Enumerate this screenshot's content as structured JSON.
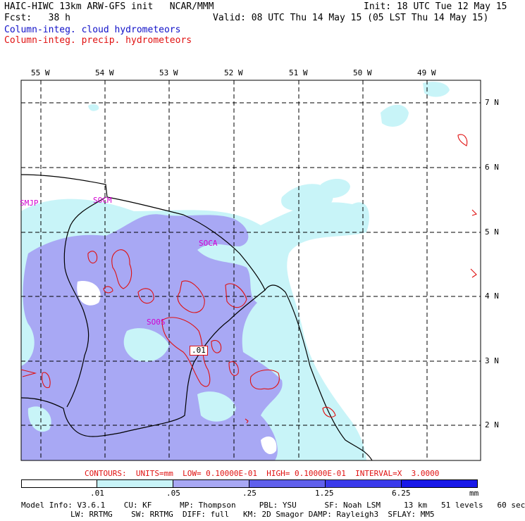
{
  "header": {
    "line1_left": "HAIC-HIWC 13km ARW-GFS init   NCAR/MMM",
    "line1_right": "Init: 18 UTC Tue 12 May 15",
    "line2_left": "Fcst:   38 h",
    "line2_right": "Valid: 08 UTC Thu 14 May 15 (05 LST Thu 14 May 15)",
    "line3": "Column-integ. cloud hydrometeors",
    "line4": "Column-integ. precip. hydrometeors"
  },
  "map": {
    "lon_labels": [
      "55 W",
      "54 W",
      "53 W",
      "52 W",
      "51 W",
      "50 W",
      "49 W"
    ],
    "lat_labels": [
      "7 N",
      "6 N",
      "5 N",
      "4 N",
      "3 N",
      "2 N"
    ],
    "stations": [
      "SMJP",
      "SOCM",
      "SOCA",
      "SO0S"
    ],
    "contour_label": ".01"
  },
  "contour_info": "CONTOURS:  UNITS=mm  LOW= 0.10000E-01  HIGH= 0.10000E-01  INTERVAL=X  3.0000",
  "colorbar": {
    "ticks": [
      ".01",
      ".05",
      ".25",
      "1.25",
      "6.25"
    ],
    "units": "mm",
    "colors": [
      "#ffffff",
      "#c8f4f8",
      "#a8a8f4",
      "#6060ec",
      "#1818e8"
    ]
  },
  "footer": {
    "model_info": "Model Info: V3.6.1    CU: KF      MP: Thompson     PBL: YSU      SF: Noah LSM     13 km   51 levels   60 sec",
    "physics": "LW: RRTMG    SW: RRTMG  DIFF: full   KM: 2D Smagor DAMP: Rayleigh3  SFLAY: MM5"
  }
}
